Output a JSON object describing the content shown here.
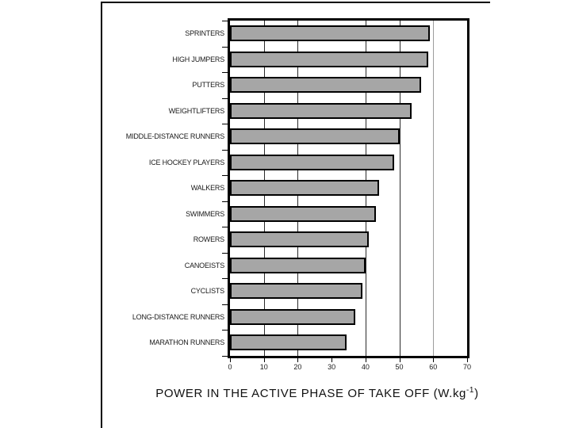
{
  "chart_data": {
    "type": "bar",
    "orientation": "horizontal",
    "title_prefix": "POWER IN THE ACTIVE PHASE OF TAKE OFF (W.kg",
    "title_sup": "-1",
    "title_suffix": ")",
    "categories": [
      "SPRINTERS",
      "HIGH JUMPERS",
      "PUTTERS",
      "WEIGHTLIFTERS",
      "MIDDLE-DISTANCE RUNNERS",
      "ICE HOCKEY PLAYERS",
      "WALKERS",
      "SWIMMERS",
      "ROWERS",
      "CANOEISTS",
      "CYCLISTS",
      "LONG-DISTANCE RUNNERS",
      "MARATHON RUNNERS"
    ],
    "values": [
      59,
      58.5,
      56.5,
      53.5,
      50,
      48.5,
      44,
      43,
      41,
      40,
      39,
      37,
      34.5
    ],
    "xlim": [
      0,
      70
    ],
    "x_ticks": [
      0,
      10,
      20,
      30,
      40,
      50,
      60,
      70
    ],
    "gridlines_dark": [
      10,
      20,
      40,
      50
    ],
    "gridlines_light": [
      60
    ],
    "grid_on": true,
    "legend": "none",
    "bar_color": "#a6a6a6",
    "bar_border_color": "#000000",
    "gridline_dark_color": "#2b2b2b",
    "gridline_light_color": "#9c9c9c"
  }
}
